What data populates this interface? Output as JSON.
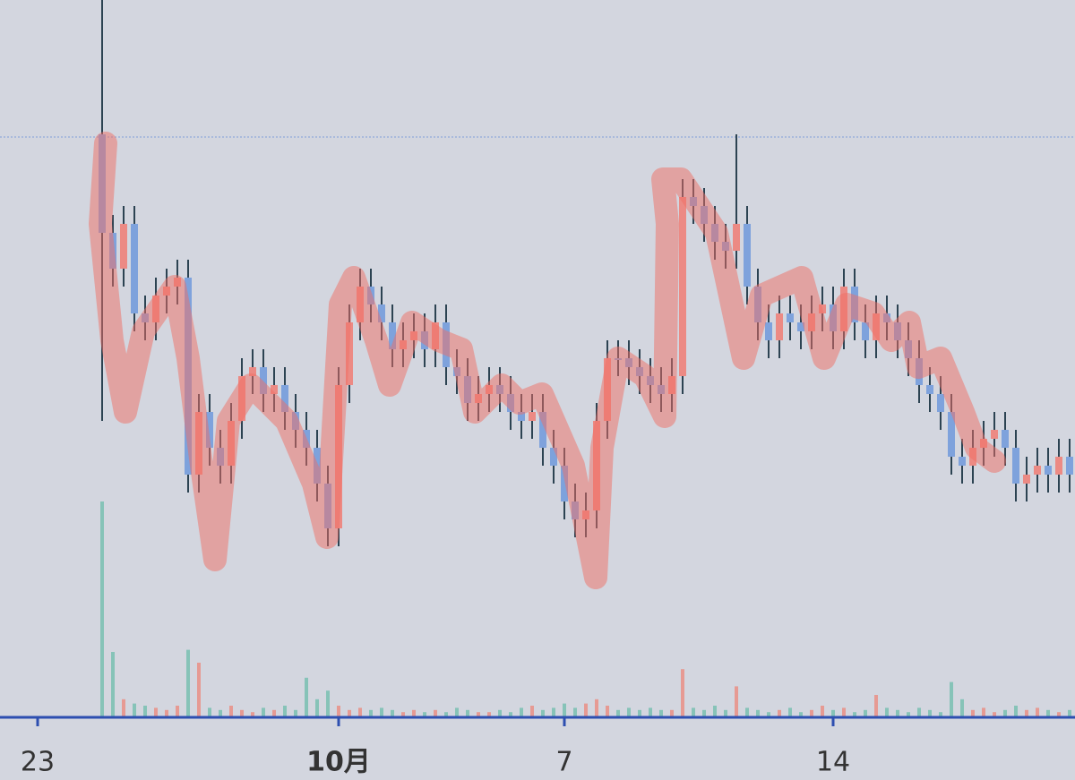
{
  "chart_data": {
    "type": "candlestick",
    "categories": [
      null,
      null,
      null,
      "23",
      null,
      null,
      null,
      null,
      null,
      null,
      null,
      null,
      null,
      null,
      null,
      null,
      null,
      null,
      null,
      null,
      null,
      null,
      null,
      null,
      null,
      null,
      null,
      null,
      null,
      null,
      null,
      "10月",
      null,
      null,
      null,
      null,
      null,
      null,
      null,
      null,
      null,
      null,
      null,
      null,
      null,
      null,
      null,
      null,
      null,
      null,
      null,
      null,
      "7",
      null,
      null,
      null,
      null,
      null,
      null,
      null,
      null,
      null,
      null,
      null,
      null,
      null,
      null,
      null,
      null,
      null,
      null,
      null,
      null,
      null,
      null,
      null,
      null,
      "14",
      null,
      null,
      null,
      null,
      null,
      null,
      null,
      null,
      null,
      null,
      null,
      null,
      null,
      null,
      null,
      null,
      null,
      null,
      null,
      null,
      null,
      null
    ],
    "open": [
      null,
      null,
      null,
      null,
      null,
      null,
      null,
      null,
      null,
      65,
      54,
      50,
      55,
      45,
      44,
      47,
      48,
      49,
      27,
      34,
      30,
      28,
      33,
      38,
      39,
      36,
      37,
      34,
      32,
      30,
      26,
      21,
      37,
      44,
      48,
      46,
      44,
      41,
      42,
      43,
      41,
      44,
      39,
      38,
      35,
      36,
      37,
      36,
      34,
      33,
      34,
      30,
      28,
      24,
      22,
      23,
      33,
      40,
      40,
      39,
      38,
      37,
      36,
      38,
      58,
      57,
      55,
      53,
      52,
      55,
      48,
      44,
      42,
      45,
      44,
      43,
      45,
      46,
      43,
      48,
      44,
      42,
      45,
      44,
      42,
      40,
      37,
      36,
      34,
      29,
      28,
      30,
      31,
      32,
      30,
      26,
      27,
      28,
      27,
      29
    ],
    "high": [
      null,
      null,
      null,
      null,
      null,
      null,
      null,
      null,
      null,
      80,
      56,
      57,
      57,
      47,
      49,
      50,
      51,
      51,
      36,
      36,
      32,
      35,
      40,
      41,
      41,
      39,
      39,
      36,
      34,
      32,
      28,
      39,
      46,
      50,
      50,
      48,
      46,
      44,
      45,
      45,
      46,
      46,
      41,
      40,
      38,
      39,
      39,
      38,
      36,
      36,
      36,
      32,
      30,
      26,
      25,
      35,
      42,
      42,
      42,
      41,
      40,
      39,
      40,
      60,
      60,
      59,
      57,
      55,
      65,
      57,
      50,
      46,
      47,
      47,
      46,
      47,
      48,
      48,
      50,
      50,
      46,
      47,
      47,
      46,
      44,
      42,
      39,
      38,
      36,
      31,
      32,
      33,
      34,
      34,
      32,
      29,
      30,
      30,
      31,
      31
    ],
    "low": [
      null,
      null,
      null,
      null,
      null,
      null,
      null,
      null,
      null,
      33,
      48,
      48,
      43,
      42,
      42,
      45,
      46,
      25,
      25,
      28,
      26,
      26,
      31,
      36,
      34,
      34,
      32,
      30,
      28,
      24,
      19,
      19,
      35,
      42,
      44,
      42,
      39,
      39,
      40,
      39,
      39,
      37,
      36,
      33,
      33,
      34,
      34,
      32,
      31,
      31,
      28,
      26,
      22,
      20,
      20,
      21,
      31,
      38,
      37,
      36,
      35,
      34,
      34,
      36,
      55,
      53,
      51,
      50,
      50,
      46,
      42,
      40,
      40,
      42,
      41,
      41,
      43,
      41,
      41,
      42,
      40,
      40,
      42,
      40,
      38,
      35,
      34,
      32,
      27,
      26,
      26,
      28,
      29,
      28,
      24,
      24,
      25,
      25,
      25,
      25
    ],
    "close": [
      null,
      null,
      null,
      null,
      null,
      null,
      null,
      null,
      null,
      54,
      50,
      55,
      45,
      44,
      47,
      48,
      49,
      27,
      34,
      30,
      28,
      33,
      38,
      39,
      36,
      37,
      34,
      32,
      30,
      26,
      21,
      37,
      44,
      48,
      46,
      44,
      41,
      42,
      43,
      41,
      44,
      39,
      38,
      35,
      36,
      37,
      36,
      34,
      33,
      34,
      30,
      28,
      24,
      22,
      23,
      33,
      40,
      40,
      39,
      38,
      37,
      36,
      38,
      58,
      57,
      55,
      53,
      52,
      55,
      48,
      44,
      42,
      45,
      44,
      43,
      45,
      46,
      43,
      48,
      44,
      42,
      45,
      44,
      42,
      40,
      37,
      36,
      34,
      29,
      28,
      30,
      31,
      32,
      30,
      26,
      27,
      28,
      27,
      29,
      27
    ],
    "volume": [
      null,
      null,
      null,
      null,
      null,
      null,
      null,
      null,
      null,
      100,
      30,
      8,
      6,
      5,
      4,
      3,
      5,
      31,
      25,
      4,
      3,
      5,
      3,
      2,
      4,
      3,
      5,
      3,
      18,
      8,
      12,
      5,
      3,
      4,
      3,
      4,
      3,
      2,
      3,
      2,
      3,
      2,
      4,
      3,
      2,
      2,
      3,
      2,
      4,
      5,
      3,
      4,
      6,
      4,
      6,
      8,
      5,
      3,
      4,
      3,
      4,
      3,
      3,
      22,
      4,
      3,
      5,
      3,
      14,
      4,
      3,
      2,
      3,
      4,
      2,
      3,
      5,
      3,
      4,
      2,
      3,
      10,
      4,
      3,
      2,
      4,
      3,
      2,
      16,
      8,
      3,
      4,
      2,
      3,
      5,
      3,
      4,
      3,
      2,
      3
    ],
    "ylim": [
      0,
      80
    ],
    "volume_ylim": [
      0,
      100
    ],
    "up_color": "#ec8a84",
    "down_color": "#7ea2dc",
    "wick_color": "#2c4352",
    "volume_up_color": "#e69a93",
    "volume_down_color": "#86c3b8"
  }
}
